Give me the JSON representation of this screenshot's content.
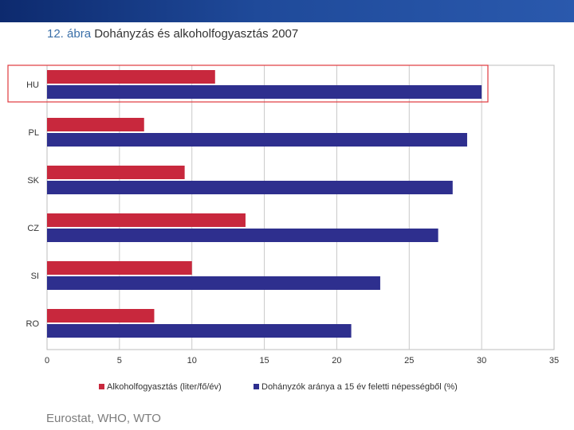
{
  "colors": {
    "header_band": "#1f4a9a",
    "figure_label": "#3a6fa8",
    "alcohol": "#c8283d",
    "smoking": "#2e2f8e",
    "highlight": "#e0393e"
  },
  "figure_label": "12. ábra",
  "source": "Eurostat, WHO, WTO",
  "chart_data": {
    "type": "bar",
    "orientation": "horizontal",
    "title": "Dohányzás és alkoholfogyasztás 2007",
    "xlabel": "",
    "ylabel": "",
    "xlim": [
      0,
      35
    ],
    "x_ticks": [
      0,
      5,
      10,
      15,
      20,
      25,
      30,
      35
    ],
    "grid": "vertical",
    "legend_position": "bottom",
    "categories": [
      "HU",
      "PL",
      "SK",
      "CZ",
      "SI",
      "RO"
    ],
    "highlighted_category": "HU",
    "series": [
      {
        "name": "Alkoholfogyasztás (liter/fő/év)",
        "color": "#c8283d",
        "values": [
          11.6,
          6.7,
          9.5,
          13.7,
          10.0,
          7.4
        ]
      },
      {
        "name": "Dohányzók aránya a 15 év feletti népességből (%)",
        "color": "#2e2f8e",
        "values": [
          30.0,
          29.0,
          28.0,
          27.0,
          23.0,
          21.0
        ]
      }
    ]
  }
}
